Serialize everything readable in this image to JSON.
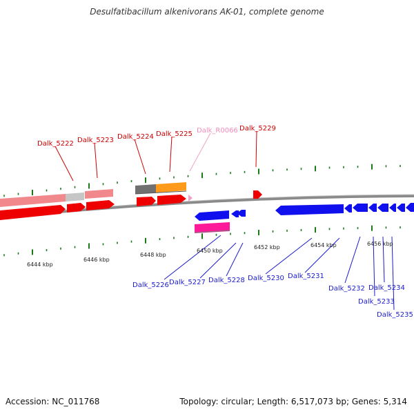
{
  "title": "Desulfatibacillum alkenivorans AK-01, complete genome",
  "footer": {
    "accession": "Accession: NC_011768",
    "summary": "Topology: circular; Length: 6,517,073 bp; Genes: 5,314"
  },
  "scale_labels": [
    "6444 kbp",
    "6446 kbp",
    "6448 kbp",
    "6450 kbp",
    "6452 kbp",
    "6454 kbp",
    "6456 kbp"
  ],
  "genes_top": [
    {
      "name": "Dalk_5222",
      "color": "#cc0000"
    },
    {
      "name": "Dalk_5223",
      "color": "#cc0000"
    },
    {
      "name": "Dalk_5224",
      "color": "#cc0000"
    },
    {
      "name": "Dalk_5225",
      "color": "#cc0000"
    },
    {
      "name": "Dalk_R0066",
      "color": "#f08cbc"
    },
    {
      "name": "Dalk_5229",
      "color": "#cc0000"
    }
  ],
  "genes_bottom": [
    {
      "name": "Dalk_5226",
      "color": "#1a1acc"
    },
    {
      "name": "Dalk_5227",
      "color": "#1a1acc"
    },
    {
      "name": "Dalk_5228",
      "color": "#1a1acc"
    },
    {
      "name": "Dalk_5230",
      "color": "#1a1acc"
    },
    {
      "name": "Dalk_5231",
      "color": "#1a1acc"
    },
    {
      "name": "Dalk_5232",
      "color": "#1a1acc"
    },
    {
      "name": "Dalk_5233",
      "color": "#1a1acc"
    },
    {
      "name": "Dalk_5234",
      "color": "#1a1acc"
    },
    {
      "name": "Dalk_5235",
      "color": "#1a1acc"
    }
  ]
}
